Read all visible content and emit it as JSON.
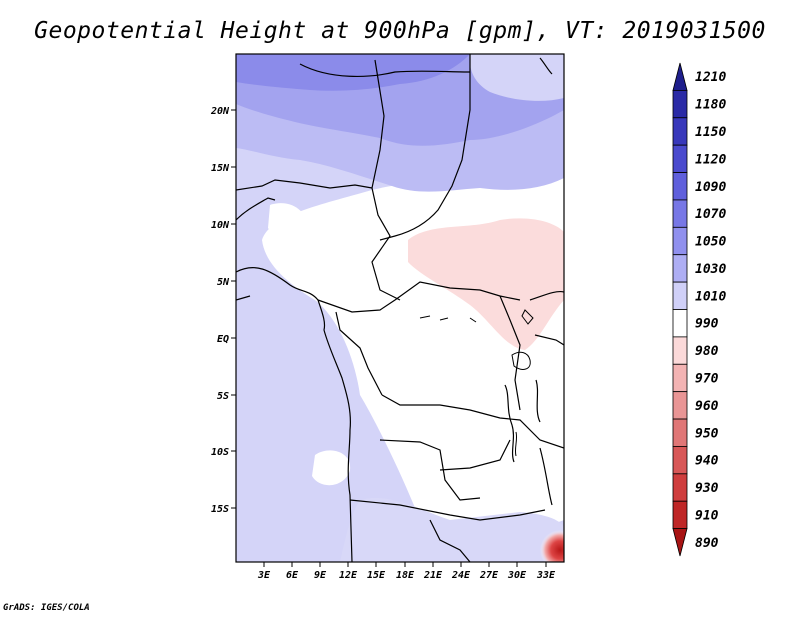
{
  "title": "Geopotential Height at 900hPa [gpm], VT: 2019031500",
  "credit": "GrADS: IGES/COLA",
  "map": {
    "lon_labels": [
      "3E",
      "6E",
      "9E",
      "12E",
      "15E",
      "18E",
      "21E",
      "24E",
      "27E",
      "30E",
      "33E"
    ],
    "lat_labels": [
      "20N",
      "15N",
      "10N",
      "5N",
      "EQ",
      "5S",
      "10S",
      "15S"
    ]
  },
  "colorbar": {
    "labels": [
      "1210",
      "1180",
      "1150",
      "1120",
      "1090",
      "1070",
      "1050",
      "1030",
      "1010",
      "990",
      "980",
      "970",
      "960",
      "950",
      "940",
      "930",
      "910",
      "890"
    ],
    "colors": [
      "#1e1e8c",
      "#2a2aa6",
      "#3838bb",
      "#4a4ace",
      "#5f5fdc",
      "#7777e6",
      "#9090ee",
      "#aeaef4",
      "#d0d0f8",
      "#ffffff",
      "#fbd9d9",
      "#f3b3b3",
      "#e99595",
      "#e07676",
      "#d85757",
      "#cf3d3d",
      "#bf2626",
      "#a81414"
    ]
  }
}
